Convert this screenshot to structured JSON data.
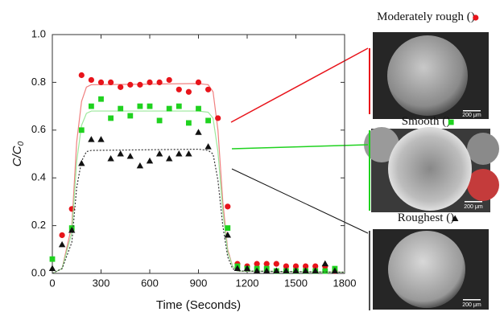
{
  "chart_data": {
    "type": "scatter",
    "ylabel": "C/C",
    "ylabel_sub": "0",
    "xlabel": "Time (Seconds)",
    "xlim": [
      0,
      1800
    ],
    "xticks": [
      0,
      300,
      600,
      900,
      1200,
      1500,
      1800
    ],
    "ylim": [
      0,
      1
    ],
    "yticks": [
      {
        "value": 0,
        "label": "0.0"
      },
      0.2,
      0.4,
      0.6,
      0.8,
      {
        "value": 1,
        "label": "1.0"
      }
    ],
    "series": [
      {
        "label_before": "Moderately rough (",
        "label_after": ")",
        "marker": "circle",
        "color": "#e8141b",
        "fit_color": "#f08080",
        "fit_dash": false,
        "x": [
          60,
          120,
          180,
          240,
          300,
          360,
          420,
          480,
          540,
          600,
          660,
          720,
          780,
          840,
          900,
          960,
          1020,
          1080,
          1140,
          1200,
          1260,
          1320,
          1380,
          1440,
          1500,
          1560,
          1620,
          1680,
          1740
        ],
        "values": [
          0.16,
          0.27,
          0.83,
          0.81,
          0.8,
          0.8,
          0.78,
          0.79,
          0.79,
          0.8,
          0.8,
          0.81,
          0.77,
          0.76,
          0.8,
          0.77,
          0.65,
          0.28,
          0.04,
          0.03,
          0.04,
          0.04,
          0.04,
          0.03,
          0.03,
          0.03,
          0.03,
          0.03,
          0.01
        ],
        "fit_x": [
          0,
          60,
          120,
          150,
          180,
          210,
          240,
          900,
          960,
          990,
          1020,
          1050,
          1080,
          1110,
          1140,
          1800
        ],
        "fit_values": [
          0,
          0.02,
          0.2,
          0.55,
          0.72,
          0.78,
          0.79,
          0.795,
          0.79,
          0.76,
          0.6,
          0.3,
          0.1,
          0.03,
          0.01,
          0.005
        ],
        "scale_bar": "200 μm"
      },
      {
        "label_before": "Smooth (",
        "label_after": ")",
        "marker": "square",
        "color": "#1fd21f",
        "fit_color": "#9be89b",
        "fit_dash": false,
        "x": [
          0,
          120,
          180,
          240,
          300,
          360,
          420,
          480,
          540,
          600,
          660,
          720,
          780,
          840,
          900,
          960,
          1080,
          1140,
          1200,
          1260,
          1320,
          1380,
          1440,
          1500,
          1560,
          1620,
          1680,
          1740
        ],
        "values": [
          0.06,
          0.19,
          0.6,
          0.7,
          0.73,
          0.65,
          0.69,
          0.66,
          0.7,
          0.7,
          0.64,
          0.69,
          0.7,
          0.63,
          0.69,
          0.64,
          0.19,
          0.03,
          0.02,
          0.02,
          0.02,
          0.01,
          0.01,
          0.01,
          0.01,
          0.01,
          0.01,
          0.02
        ],
        "fit_x": [
          0,
          60,
          120,
          150,
          180,
          210,
          240,
          900,
          960,
          990,
          1020,
          1050,
          1080,
          1110,
          1140,
          1800
        ],
        "fit_values": [
          0,
          0.02,
          0.17,
          0.47,
          0.62,
          0.67,
          0.68,
          0.68,
          0.675,
          0.65,
          0.51,
          0.26,
          0.09,
          0.03,
          0.01,
          0.005
        ],
        "scale_bar": "200 μm"
      },
      {
        "label_before": "Roughest (",
        "label_after": ")",
        "marker": "triangle",
        "color": "#111111",
        "fit_color": "#333333",
        "fit_dash": true,
        "x": [
          0,
          60,
          120,
          180,
          240,
          300,
          360,
          420,
          480,
          540,
          600,
          660,
          720,
          780,
          840,
          900,
          960,
          1080,
          1140,
          1200,
          1260,
          1320,
          1380,
          1440,
          1500,
          1560,
          1620,
          1680,
          1740
        ],
        "values": [
          0.02,
          0.12,
          0.18,
          0.46,
          0.56,
          0.56,
          0.48,
          0.5,
          0.49,
          0.45,
          0.47,
          0.5,
          0.48,
          0.5,
          0.5,
          0.59,
          0.53,
          0.16,
          0.02,
          0.02,
          0.01,
          0.01,
          0.01,
          0.01,
          0.01,
          0.01,
          0.01,
          0.04,
          0.01
        ],
        "fit_x": [
          0,
          60,
          120,
          150,
          180,
          210,
          240,
          900,
          960,
          990,
          1020,
          1050,
          1080,
          1110,
          1140,
          1800
        ],
        "fit_values": [
          0,
          0.02,
          0.13,
          0.36,
          0.47,
          0.51,
          0.515,
          0.52,
          0.515,
          0.5,
          0.39,
          0.2,
          0.07,
          0.02,
          0.01,
          0.005
        ],
        "scale_bar": "200 μm"
      }
    ]
  }
}
